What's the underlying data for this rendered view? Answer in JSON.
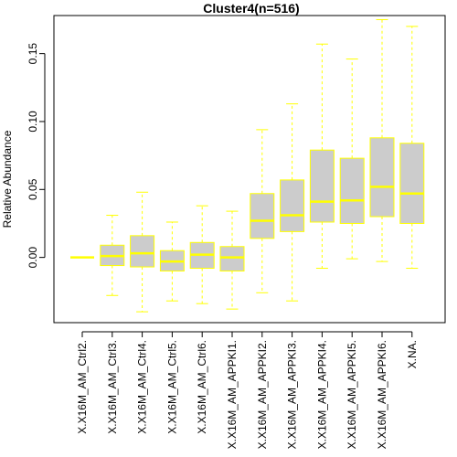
{
  "chart_data": {
    "type": "boxplot",
    "title": "Cluster4(n=516)",
    "ylabel": "Relative Abundance",
    "xlabel": "",
    "ylim": [
      -0.048,
      0.178
    ],
    "yticks": [
      0.0,
      0.05,
      0.1,
      0.15
    ],
    "ytick_labels": [
      "0.00",
      "0.05",
      "0.10",
      "0.15"
    ],
    "grid": false,
    "colors": {
      "box_fill": "#cccccc",
      "box_stroke": "#ffff00",
      "median": "#ffff00",
      "whisker": "#ffff00",
      "frame": "#000000"
    },
    "categories": [
      "X.X16M_AM_Ctrl2.",
      "X.X16M_AM_Ctrl3.",
      "X.X16M_AM_Ctrl4.",
      "X.X16M_AM_Ctrl5.",
      "X.X16M_AM_Ctrl6.",
      "X.X16M_AM_APPKI1.",
      "X.X16M_AM_APPKI2.",
      "X.X16M_AM_APPKI3.",
      "X.X16M_AM_APPKI4.",
      "X.X16M_AM_APPKI5.",
      "X.X16M_AM_APPKI6.",
      "X.NA."
    ],
    "boxes": [
      {
        "whisker_low": 0.0,
        "q1": 0.0,
        "median": 0.0,
        "q3": 0.0,
        "whisker_high": 0.0
      },
      {
        "whisker_low": -0.028,
        "q1": -0.006,
        "median": 0.001,
        "q3": 0.009,
        "whisker_high": 0.031
      },
      {
        "whisker_low": -0.04,
        "q1": -0.007,
        "median": 0.003,
        "q3": 0.016,
        "whisker_high": 0.048
      },
      {
        "whisker_low": -0.032,
        "q1": -0.01,
        "median": -0.003,
        "q3": 0.005,
        "whisker_high": 0.026
      },
      {
        "whisker_low": -0.034,
        "q1": -0.008,
        "median": 0.002,
        "q3": 0.011,
        "whisker_high": 0.038
      },
      {
        "whisker_low": -0.038,
        "q1": -0.01,
        "median": 0.0,
        "q3": 0.008,
        "whisker_high": 0.034
      },
      {
        "whisker_low": -0.026,
        "q1": 0.014,
        "median": 0.027,
        "q3": 0.047,
        "whisker_high": 0.094
      },
      {
        "whisker_low": -0.032,
        "q1": 0.019,
        "median": 0.031,
        "q3": 0.057,
        "whisker_high": 0.113
      },
      {
        "whisker_low": -0.008,
        "q1": 0.026,
        "median": 0.041,
        "q3": 0.079,
        "whisker_high": 0.157
      },
      {
        "whisker_low": -0.001,
        "q1": 0.025,
        "median": 0.042,
        "q3": 0.073,
        "whisker_high": 0.146
      },
      {
        "whisker_low": -0.003,
        "q1": 0.03,
        "median": 0.052,
        "q3": 0.088,
        "whisker_high": 0.175
      },
      {
        "whisker_low": -0.008,
        "q1": 0.025,
        "median": 0.047,
        "q3": 0.084,
        "whisker_high": 0.17
      }
    ]
  }
}
